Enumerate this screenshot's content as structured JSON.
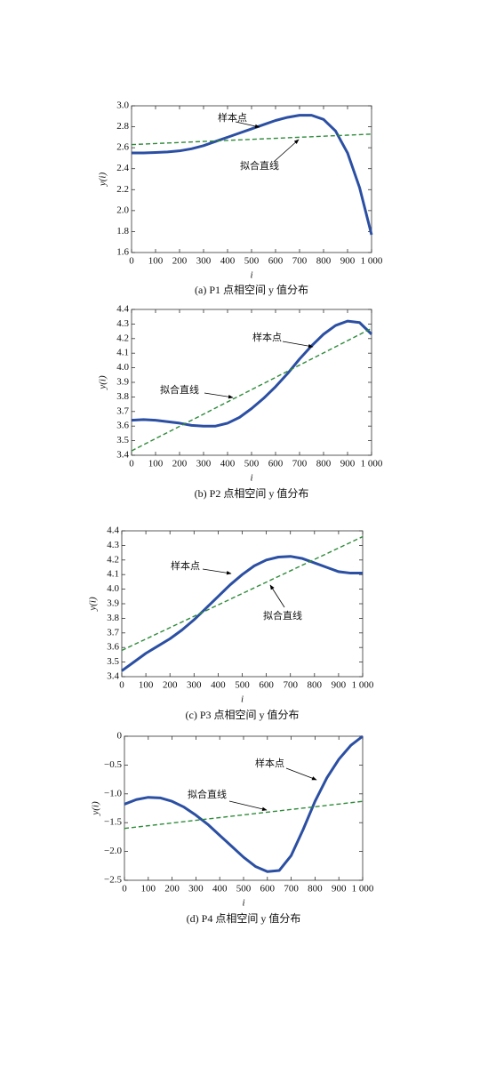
{
  "chart_data": [
    {
      "type": "line",
      "caption": "(a)  P1 点相空间 y 值分布",
      "xlabel": "i",
      "ylabel": "y(i)",
      "x": [
        0,
        50,
        100,
        150,
        200,
        250,
        300,
        350,
        400,
        450,
        500,
        550,
        600,
        650,
        700,
        750,
        800,
        850,
        900,
        950,
        1000
      ],
      "series": [
        {
          "name": "样本点",
          "color": "#2b4fa3",
          "values": [
            2.55,
            2.55,
            2.555,
            2.56,
            2.57,
            2.59,
            2.62,
            2.66,
            2.7,
            2.74,
            2.78,
            2.82,
            2.86,
            2.89,
            2.91,
            2.91,
            2.87,
            2.76,
            2.55,
            2.22,
            1.77
          ]
        },
        {
          "name": "拟合直线",
          "color": "#2e8b3a",
          "dashed": true,
          "values": [
            2.63,
            2.635,
            2.64,
            2.645,
            2.65,
            2.655,
            2.66,
            2.665,
            2.67,
            2.675,
            2.68,
            2.685,
            2.69,
            2.695,
            2.7,
            2.705,
            2.71,
            2.715,
            2.72,
            2.725,
            2.73
          ]
        }
      ],
      "xlim": [
        0,
        1000
      ],
      "xticks": [
        0,
        100,
        200,
        300,
        400,
        500,
        600,
        700,
        800,
        900,
        {
          "value": 1000,
          "label": "1 000"
        }
      ],
      "ylim": [
        1.6,
        3.0
      ],
      "yticks": [
        1.6,
        1.8,
        {
          "value": 2,
          "label": "2.0"
        },
        2.2,
        2.4,
        2.6,
        2.8,
        {
          "value": 3,
          "label": "3.0"
        }
      ]
    },
    {
      "type": "line",
      "caption": "(b)  P2 点相空间 y 值分布",
      "xlabel": "i",
      "ylabel": "y(i)",
      "x": [
        0,
        50,
        100,
        150,
        200,
        250,
        300,
        350,
        400,
        450,
        500,
        550,
        600,
        650,
        700,
        750,
        800,
        850,
        900,
        950,
        1000
      ],
      "series": [
        {
          "name": "样本点",
          "color": "#2b4fa3",
          "values": [
            3.64,
            3.645,
            3.64,
            3.63,
            3.62,
            3.605,
            3.6,
            3.6,
            3.62,
            3.66,
            3.72,
            3.79,
            3.87,
            3.96,
            4.06,
            4.15,
            4.23,
            4.29,
            4.32,
            4.31,
            4.23
          ]
        },
        {
          "name": "拟合直线",
          "color": "#2e8b3a",
          "dashed": true,
          "values": [
            3.43,
            3.472,
            3.514,
            3.556,
            3.598,
            3.64,
            3.682,
            3.724,
            3.766,
            3.808,
            3.85,
            3.892,
            3.934,
            3.976,
            4.018,
            4.06,
            4.102,
            4.144,
            4.186,
            4.228,
            4.27
          ]
        }
      ],
      "xlim": [
        0,
        1000
      ],
      "xticks": [
        0,
        100,
        200,
        300,
        400,
        500,
        600,
        700,
        800,
        900,
        {
          "value": 1000,
          "label": "1 000"
        }
      ],
      "ylim": [
        3.4,
        4.4
      ],
      "yticks": [
        3.4,
        3.5,
        3.6,
        3.7,
        3.8,
        3.9,
        {
          "value": 4,
          "label": "4.0"
        },
        4.1,
        4.2,
        4.3,
        4.4
      ]
    },
    {
      "type": "line",
      "caption": "(c)  P3 点相空间 y 值分布",
      "xlabel": "i",
      "ylabel": "y(i)",
      "x": [
        0,
        50,
        100,
        150,
        200,
        250,
        300,
        350,
        400,
        450,
        500,
        550,
        600,
        650,
        700,
        750,
        800,
        850,
        900,
        950,
        1000
      ],
      "series": [
        {
          "name": "样本点",
          "color": "#2b4fa3",
          "values": [
            3.44,
            3.5,
            3.56,
            3.61,
            3.66,
            3.72,
            3.79,
            3.87,
            3.95,
            4.03,
            4.1,
            4.16,
            4.2,
            4.22,
            4.225,
            4.21,
            4.18,
            4.15,
            4.12,
            4.11,
            4.11
          ]
        },
        {
          "name": "拟合直线",
          "color": "#2e8b3a",
          "dashed": true,
          "values": [
            3.58,
            3.619,
            3.658,
            3.697,
            3.736,
            3.775,
            3.814,
            3.853,
            3.892,
            3.931,
            3.97,
            4.009,
            4.048,
            4.087,
            4.126,
            4.165,
            4.204,
            4.243,
            4.282,
            4.321,
            4.36
          ]
        }
      ],
      "xlim": [
        0,
        1000
      ],
      "xticks": [
        0,
        100,
        200,
        300,
        400,
        500,
        600,
        700,
        800,
        900,
        {
          "value": 1000,
          "label": "1 000"
        }
      ],
      "ylim": [
        3.4,
        4.4
      ],
      "yticks": [
        3.4,
        3.5,
        3.6,
        3.7,
        3.8,
        3.9,
        {
          "value": 4,
          "label": "4.0"
        },
        4.1,
        4.2,
        4.3,
        4.4
      ]
    },
    {
      "type": "line",
      "caption": "(d)  P4 点相空间 y 值分布",
      "xlabel": "i",
      "ylabel": "y(i)",
      "x": [
        0,
        50,
        100,
        150,
        200,
        250,
        300,
        350,
        400,
        450,
        500,
        550,
        600,
        650,
        700,
        750,
        800,
        850,
        900,
        950,
        1000
      ],
      "series": [
        {
          "name": "样本点",
          "color": "#2b4fa3",
          "values": [
            -1.18,
            -1.1,
            -1.06,
            -1.07,
            -1.13,
            -1.23,
            -1.37,
            -1.53,
            -1.72,
            -1.91,
            -2.1,
            -2.26,
            -2.35,
            -2.33,
            -2.07,
            -1.62,
            -1.13,
            -0.72,
            -0.4,
            -0.16,
            0
          ]
        },
        {
          "name": "拟合直线",
          "color": "#2e8b3a",
          "dashed": true,
          "values": [
            -1.6,
            -1.5765,
            -1.553,
            -1.5295,
            -1.506,
            -1.4825,
            -1.459,
            -1.4355,
            -1.412,
            -1.3885,
            -1.365,
            -1.3415,
            -1.318,
            -1.2945,
            -1.271,
            -1.2475,
            -1.224,
            -1.2005,
            -1.177,
            -1.1535,
            -1.13
          ]
        }
      ],
      "xlim": [
        0,
        1000
      ],
      "xticks": [
        0,
        100,
        200,
        300,
        400,
        500,
        600,
        700,
        800,
        900,
        {
          "value": 1000,
          "label": "1 000"
        }
      ],
      "ylim": [
        -2.5,
        0
      ],
      "yticks": [
        {
          "value": -2.5,
          "label": "−2.5"
        },
        {
          "value": -2,
          "label": "−2.0"
        },
        {
          "value": -1.5,
          "label": "−1.5"
        },
        {
          "value": -1,
          "label": "−1.0"
        },
        {
          "value": -0.5,
          "label": "−0.5"
        },
        0
      ]
    }
  ]
}
